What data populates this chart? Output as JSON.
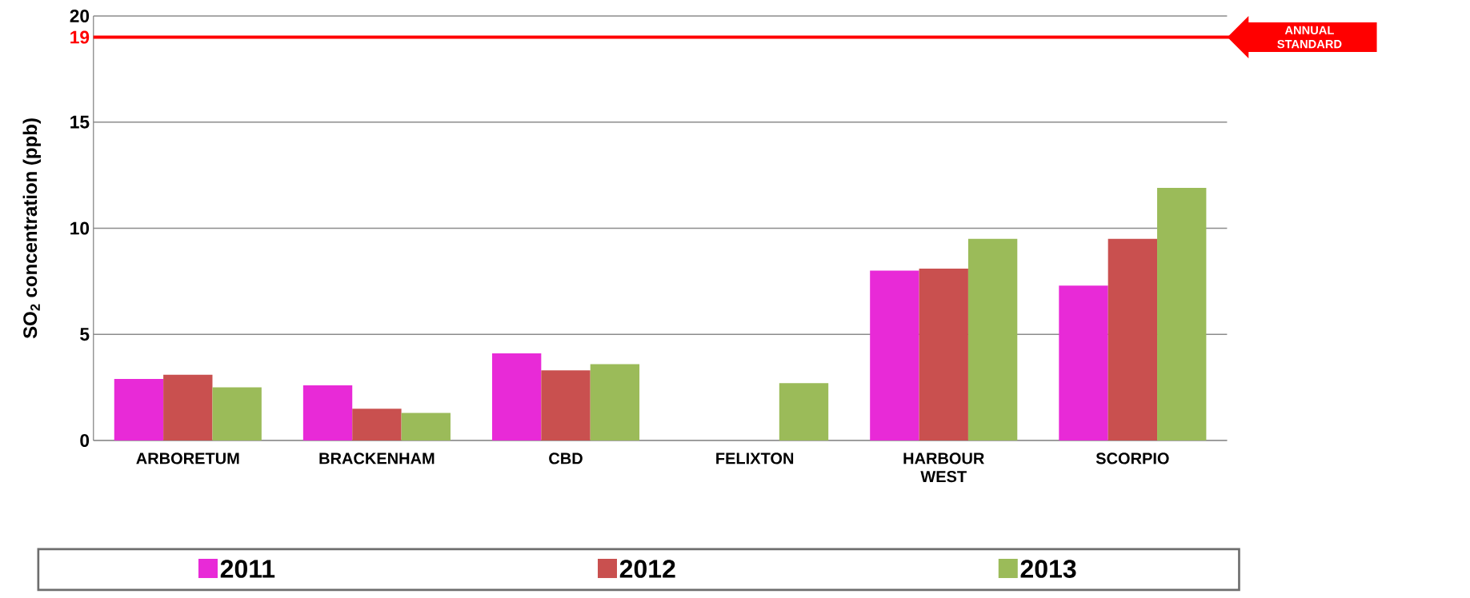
{
  "chart_data": {
    "type": "bar",
    "ylabel": "SO$_{2}$ concentration (ppb)",
    "categories": [
      "ARBORETUM",
      "BRACKENHAM",
      "CBD",
      "FELIXTON",
      "HARBOUR WEST",
      "SCORPIO"
    ],
    "series": [
      {
        "name": "2011",
        "color": "#e82ad7",
        "values": [
          2.9,
          2.6,
          4.1,
          null,
          8.0,
          7.3
        ]
      },
      {
        "name": "2012",
        "color": "#c9504f",
        "values": [
          3.1,
          1.5,
          3.3,
          null,
          8.1,
          9.5
        ]
      },
      {
        "name": "2013",
        "color": "#9bbb59",
        "values": [
          2.5,
          1.3,
          3.6,
          2.7,
          9.5,
          11.9
        ]
      }
    ],
    "ylim": [
      0,
      20
    ],
    "yticks": [
      0,
      5,
      10,
      15,
      19,
      20
    ],
    "grid": "y",
    "legend": "bottom",
    "ref_lines": [
      {
        "axis": "y",
        "value": 19,
        "label": "ANNUAL STANDARD",
        "color": "#ff0000"
      }
    ]
  }
}
